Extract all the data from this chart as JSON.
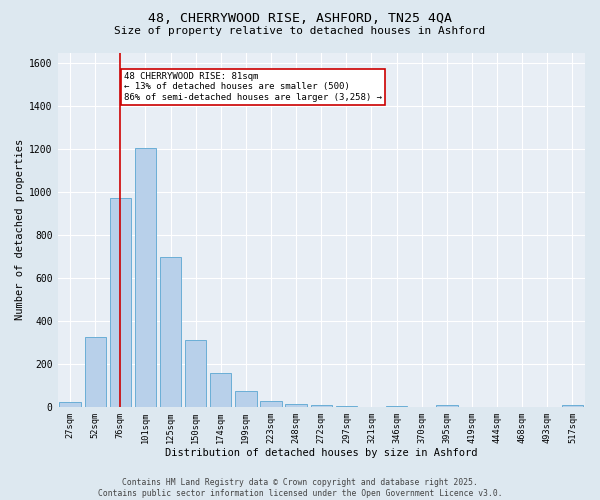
{
  "title_line1": "48, CHERRYWOOD RISE, ASHFORD, TN25 4QA",
  "title_line2": "Size of property relative to detached houses in Ashford",
  "xlabel": "Distribution of detached houses by size in Ashford",
  "ylabel": "Number of detached properties",
  "bar_labels": [
    "27sqm",
    "52sqm",
    "76sqm",
    "101sqm",
    "125sqm",
    "150sqm",
    "174sqm",
    "199sqm",
    "223sqm",
    "248sqm",
    "272sqm",
    "297sqm",
    "321sqm",
    "346sqm",
    "370sqm",
    "395sqm",
    "419sqm",
    "444sqm",
    "468sqm",
    "493sqm",
    "517sqm"
  ],
  "bar_values": [
    25,
    325,
    975,
    1205,
    700,
    310,
    160,
    75,
    30,
    15,
    8,
    5,
    0,
    5,
    0,
    10,
    0,
    0,
    0,
    0,
    10
  ],
  "bar_color": "#b8d0ea",
  "bar_edge_color": "#6aaed6",
  "bg_color": "#dde8f0",
  "plot_bg_color": "#e8eef5",
  "grid_color": "#ffffff",
  "vline_x": 2.0,
  "vline_color": "#cc0000",
  "annotation_text": "48 CHERRYWOOD RISE: 81sqm\n← 13% of detached houses are smaller (500)\n86% of semi-detached houses are larger (3,258) →",
  "annotation_box_color": "#ffffff",
  "annotation_box_edge": "#cc0000",
  "ylim": [
    0,
    1650
  ],
  "yticks": [
    0,
    200,
    400,
    600,
    800,
    1000,
    1200,
    1400,
    1600
  ],
  "footer_line1": "Contains HM Land Registry data © Crown copyright and database right 2025.",
  "footer_line2": "Contains public sector information licensed under the Open Government Licence v3.0."
}
